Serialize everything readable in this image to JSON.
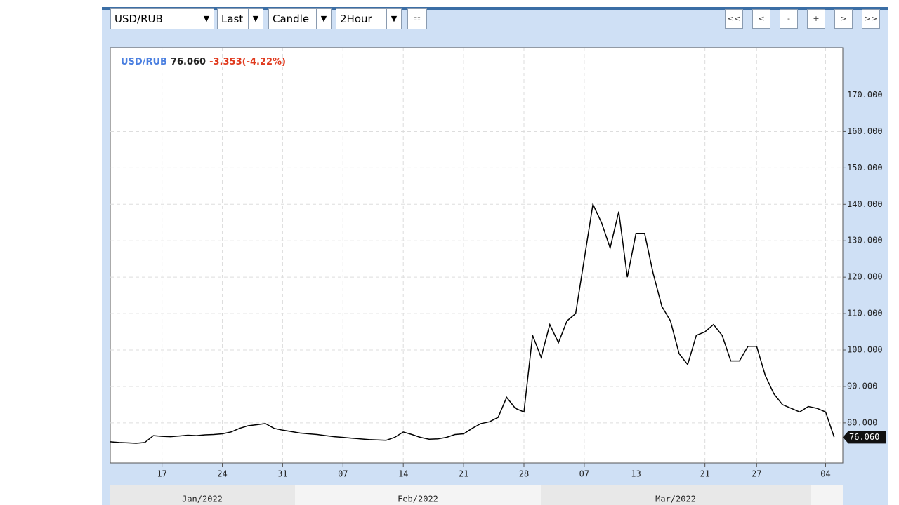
{
  "toolbar": {
    "symbol": "USD/RUB",
    "price_field": "Last",
    "chart_style": "Candle",
    "interval": "2Hour",
    "buttons": [
      "<<",
      "<",
      "-",
      "+",
      ">",
      ">>"
    ]
  },
  "chart_data": {
    "type": "line",
    "header": {
      "symbol": "USD/RUB",
      "last": "76.060",
      "change": "-3.353(-4.22%)"
    },
    "x": [
      "2022-01-11",
      "2022-01-12",
      "2022-01-13",
      "2022-01-14",
      "2022-01-15",
      "2022-01-16",
      "2022-01-17",
      "2022-01-18",
      "2022-01-19",
      "2022-01-20",
      "2022-01-21",
      "2022-01-22",
      "2022-01-23",
      "2022-01-24",
      "2022-01-25",
      "2022-01-26",
      "2022-01-27",
      "2022-01-28",
      "2022-01-29",
      "2022-01-30",
      "2022-01-31",
      "2022-02-01",
      "2022-02-02",
      "2022-02-03",
      "2022-02-04",
      "2022-02-05",
      "2022-02-06",
      "2022-02-07",
      "2022-02-08",
      "2022-02-09",
      "2022-02-10",
      "2022-02-11",
      "2022-02-12",
      "2022-02-13",
      "2022-02-14",
      "2022-02-15",
      "2022-02-16",
      "2022-02-17",
      "2022-02-18",
      "2022-02-19",
      "2022-02-20",
      "2022-02-21",
      "2022-02-22",
      "2022-02-23",
      "2022-02-24",
      "2022-02-25",
      "2022-02-26",
      "2022-02-27",
      "2022-02-28",
      "2022-03-01",
      "2022-03-02",
      "2022-03-03",
      "2022-03-04",
      "2022-03-05",
      "2022-03-06",
      "2022-03-07",
      "2022-03-08",
      "2022-03-09",
      "2022-03-10",
      "2022-03-11",
      "2022-03-12",
      "2022-03-13",
      "2022-03-14",
      "2022-03-15",
      "2022-03-16",
      "2022-03-17",
      "2022-03-18",
      "2022-03-19",
      "2022-03-20",
      "2022-03-21",
      "2022-03-22",
      "2022-03-23",
      "2022-03-24",
      "2022-03-25",
      "2022-03-26",
      "2022-03-27",
      "2022-03-28",
      "2022-03-29",
      "2022-03-30",
      "2022-03-31",
      "2022-04-01",
      "2022-04-02",
      "2022-04-03",
      "2022-04-04",
      "2022-04-05"
    ],
    "series": [
      {
        "name": "USD/RUB",
        "color": "#000000",
        "values": [
          74.8,
          74.6,
          74.5,
          74.4,
          74.6,
          76.5,
          76.3,
          76.2,
          76.4,
          76.6,
          76.5,
          76.7,
          76.8,
          77.0,
          77.5,
          78.5,
          79.2,
          79.5,
          79.8,
          78.5,
          78.0,
          77.6,
          77.2,
          77.0,
          76.8,
          76.5,
          76.2,
          76.0,
          75.8,
          75.6,
          75.4,
          75.3,
          75.2,
          76.0,
          77.5,
          76.8,
          76.0,
          75.5,
          75.6,
          76.0,
          76.8,
          77.0,
          78.5,
          79.8,
          80.3,
          81.5,
          87.0,
          84.0,
          83.0,
          104,
          98,
          107,
          102,
          108,
          110,
          125,
          140,
          135,
          128,
          138,
          120,
          132,
          132,
          121,
          112,
          108,
          99,
          96,
          104,
          105,
          107,
          104,
          97,
          97,
          101,
          101,
          93,
          88,
          85,
          84,
          83,
          84.5,
          84,
          83,
          76.06
        ],
        "value_labels": {
          "84": "76.060"
        }
      }
    ],
    "xlim": [
      "2022-01-11",
      "2022-04-06"
    ],
    "xticks": [
      {
        "value": "2022-01-17",
        "label": "17"
      },
      {
        "value": "2022-01-24",
        "label": "24"
      },
      {
        "value": "2022-01-31",
        "label": "31"
      },
      {
        "value": "2022-02-07",
        "label": "07"
      },
      {
        "value": "2022-02-14",
        "label": "14"
      },
      {
        "value": "2022-02-21",
        "label": "21"
      },
      {
        "value": "2022-02-28",
        "label": "28"
      },
      {
        "value": "2022-03-07",
        "label": "07"
      },
      {
        "value": "2022-03-13",
        "label": "13"
      },
      {
        "value": "2022-03-21",
        "label": "21"
      },
      {
        "value": "2022-03-27",
        "label": "27"
      },
      {
        "value": "2022-04-04",
        "label": "04"
      }
    ],
    "months": [
      "Jan/2022",
      "Feb/2022",
      "Mar/2022"
    ],
    "ylim": [
      69,
      183
    ],
    "yticks": [
      {
        "value": 80,
        "label": "80.000"
      },
      {
        "value": 90,
        "label": "90.000"
      },
      {
        "value": 100,
        "label": "100.000"
      },
      {
        "value": 110,
        "label": "110.000"
      },
      {
        "value": 120,
        "label": "120.000"
      },
      {
        "value": 130,
        "label": "130.000"
      },
      {
        "value": 140,
        "label": "140.000"
      },
      {
        "value": 150,
        "label": "150.000"
      },
      {
        "value": 160,
        "label": "160.000"
      },
      {
        "value": 170,
        "label": "170.000"
      }
    ],
    "grid": true
  }
}
